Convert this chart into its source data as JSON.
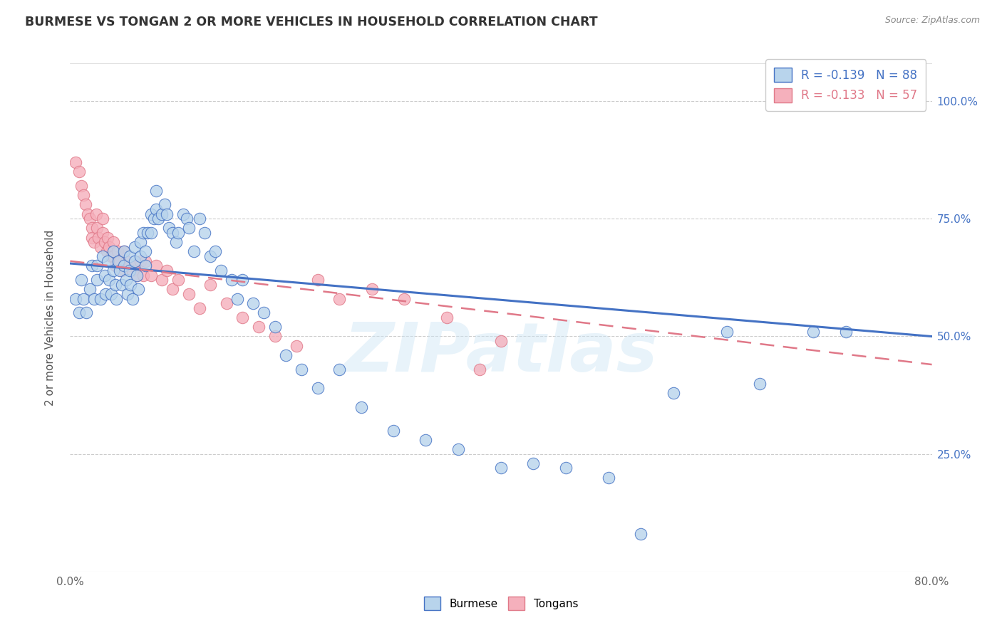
{
  "title": "BURMESE VS TONGAN 2 OR MORE VEHICLES IN HOUSEHOLD CORRELATION CHART",
  "source": "Source: ZipAtlas.com",
  "ylabel": "2 or more Vehicles in Household",
  "xlim": [
    0.0,
    0.8
  ],
  "ylim": [
    0.0,
    1.08
  ],
  "legend_blue_r": "-0.139",
  "legend_blue_n": "88",
  "legend_pink_r": "-0.133",
  "legend_pink_n": "57",
  "burmese_color": "#b8d4ec",
  "tongan_color": "#f5b0bc",
  "trendline_blue": "#4472c4",
  "trendline_pink": "#e07888",
  "watermark": "ZIPatlas",
  "ytick_values": [
    0.25,
    0.5,
    0.75,
    1.0
  ],
  "ytick_labels": [
    "25.0%",
    "50.0%",
    "75.0%",
    "100.0%"
  ],
  "burmese_x": [
    0.005,
    0.008,
    0.01,
    0.012,
    0.015,
    0.018,
    0.02,
    0.022,
    0.025,
    0.025,
    0.028,
    0.03,
    0.032,
    0.033,
    0.035,
    0.036,
    0.038,
    0.04,
    0.04,
    0.042,
    0.043,
    0.045,
    0.046,
    0.048,
    0.05,
    0.05,
    0.052,
    0.053,
    0.055,
    0.055,
    0.056,
    0.058,
    0.06,
    0.06,
    0.062,
    0.063,
    0.065,
    0.065,
    0.068,
    0.07,
    0.07,
    0.072,
    0.075,
    0.075,
    0.078,
    0.08,
    0.08,
    0.082,
    0.085,
    0.088,
    0.09,
    0.092,
    0.095,
    0.098,
    0.1,
    0.105,
    0.108,
    0.11,
    0.115,
    0.12,
    0.125,
    0.13,
    0.135,
    0.14,
    0.15,
    0.155,
    0.16,
    0.17,
    0.18,
    0.19,
    0.2,
    0.215,
    0.23,
    0.25,
    0.27,
    0.3,
    0.33,
    0.36,
    0.4,
    0.43,
    0.46,
    0.5,
    0.53,
    0.56,
    0.61,
    0.64,
    0.69,
    0.72
  ],
  "burmese_y": [
    0.58,
    0.55,
    0.62,
    0.58,
    0.55,
    0.6,
    0.65,
    0.58,
    0.65,
    0.62,
    0.58,
    0.67,
    0.63,
    0.59,
    0.66,
    0.62,
    0.59,
    0.68,
    0.64,
    0.61,
    0.58,
    0.66,
    0.64,
    0.61,
    0.68,
    0.65,
    0.62,
    0.59,
    0.67,
    0.64,
    0.61,
    0.58,
    0.69,
    0.66,
    0.63,
    0.6,
    0.7,
    0.67,
    0.72,
    0.68,
    0.65,
    0.72,
    0.76,
    0.72,
    0.75,
    0.81,
    0.77,
    0.75,
    0.76,
    0.78,
    0.76,
    0.73,
    0.72,
    0.7,
    0.72,
    0.76,
    0.75,
    0.73,
    0.68,
    0.75,
    0.72,
    0.67,
    0.68,
    0.64,
    0.62,
    0.58,
    0.62,
    0.57,
    0.55,
    0.52,
    0.46,
    0.43,
    0.39,
    0.43,
    0.35,
    0.3,
    0.28,
    0.26,
    0.22,
    0.23,
    0.22,
    0.2,
    0.08,
    0.38,
    0.51,
    0.4,
    0.51,
    0.51
  ],
  "tongan_x": [
    0.005,
    0.008,
    0.01,
    0.012,
    0.014,
    0.016,
    0.018,
    0.02,
    0.02,
    0.022,
    0.024,
    0.025,
    0.026,
    0.028,
    0.03,
    0.03,
    0.032,
    0.034,
    0.035,
    0.036,
    0.038,
    0.04,
    0.04,
    0.042,
    0.044,
    0.046,
    0.048,
    0.05,
    0.052,
    0.055,
    0.058,
    0.06,
    0.062,
    0.065,
    0.068,
    0.07,
    0.075,
    0.08,
    0.085,
    0.09,
    0.095,
    0.1,
    0.11,
    0.12,
    0.13,
    0.145,
    0.16,
    0.175,
    0.19,
    0.21,
    0.23,
    0.25,
    0.28,
    0.31,
    0.35,
    0.38,
    0.4
  ],
  "tongan_y": [
    0.87,
    0.85,
    0.82,
    0.8,
    0.78,
    0.76,
    0.75,
    0.73,
    0.71,
    0.7,
    0.76,
    0.73,
    0.71,
    0.69,
    0.75,
    0.72,
    0.7,
    0.68,
    0.71,
    0.69,
    0.67,
    0.7,
    0.67,
    0.65,
    0.68,
    0.66,
    0.64,
    0.68,
    0.66,
    0.65,
    0.64,
    0.65,
    0.63,
    0.66,
    0.63,
    0.66,
    0.63,
    0.65,
    0.62,
    0.64,
    0.6,
    0.62,
    0.59,
    0.56,
    0.61,
    0.57,
    0.54,
    0.52,
    0.5,
    0.48,
    0.62,
    0.58,
    0.6,
    0.58,
    0.54,
    0.43,
    0.49
  ]
}
